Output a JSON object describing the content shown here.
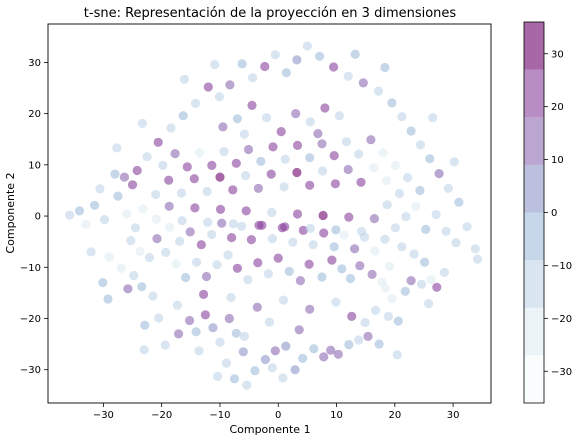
{
  "chart_data": {
    "type": "scatter",
    "title": "t-sne: Representación de la proyección en 3 dimensiones",
    "xlabel": "Componente 1",
    "ylabel": "Componente 2",
    "xlim": [
      -39.5,
      36.5
    ],
    "ylim": [
      -36.5,
      37.5
    ],
    "xticks": [
      -30,
      -20,
      -10,
      0,
      10,
      20,
      30
    ],
    "yticks": [
      -30,
      -20,
      -10,
      0,
      10,
      20,
      30
    ],
    "xtick_labels": [
      "−30",
      "−20",
      "−10",
      "0",
      "10",
      "20",
      "30"
    ],
    "ytick_labels": [
      "−30",
      "−20",
      "−10",
      "0",
      "10",
      "20",
      "30"
    ],
    "grid": false,
    "colormap": "BuPu",
    "alpha": 0.6,
    "colorbar": {
      "range": [
        -36,
        36
      ],
      "boundaries": [
        -36,
        -27,
        -18,
        -9,
        0,
        9,
        18,
        27,
        36
      ],
      "ticks": [
        -30,
        -20,
        -10,
        0,
        10,
        20,
        30
      ],
      "tick_labels": [
        "−30",
        "−20",
        "−10",
        "0",
        "10",
        "20",
        "30"
      ],
      "colors": [
        "#f7fcfd",
        "#e0ecf4",
        "#bfd3e6",
        "#9ebcda",
        "#8c96c6",
        "#8c6bb1",
        "#88419d",
        "#6e016b"
      ]
    },
    "points": [
      [
        -35.8,
        0.2,
        -12
      ],
      [
        -34.1,
        1.0,
        -8
      ],
      [
        -33.0,
        -1.6,
        -20
      ],
      [
        -31.5,
        2.1,
        -5
      ],
      [
        -29.8,
        -0.7,
        -15
      ],
      [
        -30.6,
        5.3,
        -10
      ],
      [
        -28.0,
        8.2,
        -3
      ],
      [
        -26.4,
        7.6,
        14
      ],
      [
        -25.0,
        6.1,
        20
      ],
      [
        -24.2,
        8.9,
        18
      ],
      [
        -27.5,
        3.9,
        -9
      ],
      [
        -26.0,
        0.4,
        -24
      ],
      [
        -24.5,
        -2.3,
        -18
      ],
      [
        -25.3,
        -4.8,
        -14
      ],
      [
        -23.7,
        -6.9,
        -20
      ],
      [
        -22.1,
        -8.1,
        -17
      ],
      [
        -24.8,
        -11.6,
        -10
      ],
      [
        -26.9,
        -10.2,
        -25
      ],
      [
        -29.0,
        -8.0,
        -22
      ],
      [
        -30.1,
        -13.0,
        -6
      ],
      [
        -25.8,
        -14.2,
        12
      ],
      [
        -23.4,
        -13.8,
        -9
      ],
      [
        -21.5,
        -15.6,
        -16
      ],
      [
        -20.5,
        -19.9,
        -11
      ],
      [
        -22.9,
        -21.3,
        -4
      ],
      [
        -19.4,
        -25.2,
        -10
      ],
      [
        -17.1,
        -23.0,
        15
      ],
      [
        -15.2,
        -20.4,
        12
      ],
      [
        -14.1,
        -22.6,
        -7
      ],
      [
        -12.5,
        -19.3,
        23
      ],
      [
        -11.2,
        -21.8,
        6
      ],
      [
        -10.0,
        -24.6,
        -13
      ],
      [
        -8.4,
        -20.0,
        10
      ],
      [
        -7.2,
        -22.9,
        -6
      ],
      [
        -6.0,
        -26.5,
        2
      ],
      [
        -8.9,
        -28.7,
        -12
      ],
      [
        -10.4,
        -31.3,
        -15
      ],
      [
        -7.5,
        -31.8,
        -9
      ],
      [
        -5.4,
        -33.0,
        -14
      ],
      [
        -4.0,
        -30.2,
        -8
      ],
      [
        -2.2,
        -28.0,
        7
      ],
      [
        -0.5,
        -26.3,
        12
      ],
      [
        1.3,
        -25.4,
        4
      ],
      [
        -1.0,
        -29.6,
        -10
      ],
      [
        0.8,
        -31.6,
        -12
      ],
      [
        2.9,
        -30.0,
        3
      ],
      [
        4.2,
        -27.8,
        -6
      ],
      [
        6.1,
        -25.9,
        -9
      ],
      [
        7.8,
        -27.5,
        11
      ],
      [
        9.0,
        -26.2,
        14
      ],
      [
        10.3,
        -27.0,
        16
      ],
      [
        12.1,
        -25.1,
        -5
      ],
      [
        13.8,
        -24.2,
        -13
      ],
      [
        15.4,
        -23.5,
        10
      ],
      [
        17.3,
        -25.0,
        -7
      ],
      [
        14.9,
        -20.8,
        -18
      ],
      [
        16.7,
        -18.4,
        -12
      ],
      [
        18.9,
        -19.6,
        -15
      ],
      [
        20.6,
        -20.5,
        -9
      ],
      [
        19.5,
        -16.1,
        -20
      ],
      [
        21.8,
        -14.7,
        -8
      ],
      [
        22.8,
        -12.6,
        14
      ],
      [
        24.6,
        -13.3,
        -12
      ],
      [
        26.2,
        -12.4,
        -20
      ],
      [
        28.5,
        -11.0,
        -15
      ],
      [
        27.2,
        -13.9,
        18
      ],
      [
        25.1,
        -9.0,
        -6
      ],
      [
        23.3,
        -7.4,
        -17
      ],
      [
        21.2,
        -6.0,
        -11
      ],
      [
        19.1,
        -9.8,
        -22
      ],
      [
        17.8,
        -12.9,
        -25
      ],
      [
        18.4,
        -14.1,
        -19
      ],
      [
        16.1,
        -11.4,
        12
      ],
      [
        14.0,
        -9.7,
        17
      ],
      [
        12.4,
        -12.2,
        -7
      ],
      [
        10.9,
        -10.3,
        -4
      ],
      [
        9.2,
        -8.6,
        24
      ],
      [
        7.5,
        -11.9,
        -6
      ],
      [
        5.3,
        -9.4,
        21
      ],
      [
        3.8,
        -12.6,
        15
      ],
      [
        1.9,
        -10.8,
        -8
      ],
      [
        0.0,
        -8.2,
        25
      ],
      [
        -1.7,
        -11.3,
        -13
      ],
      [
        -3.5,
        -9.1,
        20
      ],
      [
        -5.2,
        -12.4,
        -11
      ],
      [
        -7.0,
        -10.2,
        19
      ],
      [
        -8.6,
        -7.6,
        -18
      ],
      [
        -10.5,
        -9.5,
        -12
      ],
      [
        -12.3,
        -11.8,
        13
      ],
      [
        -14.0,
        -9.0,
        -15
      ],
      [
        -15.9,
        -12.0,
        -6
      ],
      [
        -17.5,
        -9.3,
        -21
      ],
      [
        -19.3,
        -7.1,
        -13
      ],
      [
        -20.8,
        -4.4,
        17
      ],
      [
        -18.6,
        -2.2,
        -22
      ],
      [
        -16.9,
        -4.9,
        -12
      ],
      [
        -15.1,
        -3.1,
        14
      ],
      [
        -13.2,
        -5.6,
        22
      ],
      [
        -11.4,
        -3.6,
        -16
      ],
      [
        -9.7,
        -1.4,
        15
      ],
      [
        -8.0,
        -4.2,
        26
      ],
      [
        -6.3,
        -2.0,
        -14
      ],
      [
        -4.6,
        -4.6,
        24
      ],
      [
        -2.8,
        -1.8,
        19
      ],
      [
        -1.0,
        -4.4,
        -10
      ],
      [
        0.7,
        -2.3,
        21
      ],
      [
        2.5,
        -5.1,
        -12
      ],
      [
        4.3,
        -2.8,
        18
      ],
      [
        6.0,
        -5.6,
        -15
      ],
      [
        7.8,
        -3.3,
        23
      ],
      [
        9.6,
        -6.0,
        -8
      ],
      [
        11.3,
        -3.7,
        -20
      ],
      [
        13.1,
        -6.4,
        11
      ],
      [
        14.8,
        -4.1,
        -16
      ],
      [
        16.6,
        -6.8,
        -22
      ],
      [
        18.3,
        -4.5,
        -10
      ],
      [
        20.1,
        -2.3,
        -18
      ],
      [
        21.9,
        -0.1,
        -13
      ],
      [
        23.6,
        1.9,
        -24
      ],
      [
        25.3,
        -2.6,
        -6
      ],
      [
        27.1,
        0.3,
        -16
      ],
      [
        28.8,
        -3.0,
        -11
      ],
      [
        30.5,
        -5.2,
        -14
      ],
      [
        32.4,
        -2.1,
        -10
      ],
      [
        33.8,
        -6.4,
        -13
      ],
      [
        31.0,
        2.7,
        -8
      ],
      [
        29.2,
        5.4,
        -15
      ],
      [
        27.6,
        8.3,
        10
      ],
      [
        26.0,
        11.2,
        -9
      ],
      [
        24.4,
        13.9,
        -13
      ],
      [
        22.8,
        16.6,
        -7
      ],
      [
        21.2,
        19.4,
        -12
      ],
      [
        19.5,
        22.1,
        -6
      ],
      [
        17.2,
        24.4,
        -14
      ],
      [
        14.6,
        26.0,
        12
      ],
      [
        12.0,
        27.3,
        -10
      ],
      [
        9.5,
        29.1,
        18
      ],
      [
        7.1,
        31.2,
        -9
      ],
      [
        5.0,
        33.2,
        -12
      ],
      [
        3.2,
        30.5,
        8
      ],
      [
        1.4,
        28.0,
        -5
      ],
      [
        -0.5,
        31.5,
        -11
      ],
      [
        -2.3,
        29.2,
        20
      ],
      [
        -4.4,
        27.0,
        -13
      ],
      [
        -6.2,
        29.7,
        -8
      ],
      [
        -8.3,
        25.6,
        15
      ],
      [
        -10.1,
        23.3,
        -10
      ],
      [
        -12.0,
        25.2,
        24
      ],
      [
        -14.2,
        22.0,
        -12
      ],
      [
        -16.3,
        19.6,
        -7
      ],
      [
        -18.4,
        17.2,
        -15
      ],
      [
        -20.6,
        14.4,
        18
      ],
      [
        -22.5,
        11.6,
        -13
      ],
      [
        -19.8,
        9.9,
        -18
      ],
      [
        -17.7,
        12.2,
        16
      ],
      [
        -15.6,
        9.6,
        20
      ],
      [
        -13.5,
        12.4,
        -20
      ],
      [
        -11.4,
        9.9,
        26
      ],
      [
        -9.3,
        12.6,
        -12
      ],
      [
        -7.2,
        10.3,
        23
      ],
      [
        -5.1,
        13.0,
        15
      ],
      [
        -3.0,
        10.7,
        -9
      ],
      [
        -0.9,
        13.5,
        22
      ],
      [
        1.2,
        11.1,
        -14
      ],
      [
        3.3,
        13.8,
        24
      ],
      [
        5.4,
        11.4,
        -7
      ],
      [
        7.5,
        14.1,
        17
      ],
      [
        9.6,
        11.8,
        21
      ],
      [
        11.7,
        14.5,
        -11
      ],
      [
        13.8,
        12.1,
        -16
      ],
      [
        15.9,
        14.9,
        13
      ],
      [
        18.0,
        12.4,
        -19
      ],
      [
        20.1,
        9.9,
        -25
      ],
      [
        22.2,
        7.5,
        -12
      ],
      [
        24.3,
        5.0,
        -8
      ],
      [
        20.8,
        4.4,
        -16
      ],
      [
        18.6,
        6.9,
        -21
      ],
      [
        16.4,
        9.4,
        -22
      ],
      [
        14.2,
        6.6,
        19
      ],
      [
        12.0,
        9.1,
        16
      ],
      [
        9.8,
        6.3,
        25
      ],
      [
        7.6,
        8.8,
        -10
      ],
      [
        5.4,
        6.0,
        22
      ],
      [
        3.2,
        8.5,
        27
      ],
      [
        1.0,
        5.7,
        -13
      ],
      [
        -1.2,
        8.2,
        26
      ],
      [
        -3.4,
        5.4,
        17
      ],
      [
        -5.6,
        7.9,
        -12
      ],
      [
        -7.8,
        5.1,
        24
      ],
      [
        -10.0,
        7.6,
        27
      ],
      [
        -12.2,
        4.8,
        -11
      ],
      [
        -14.4,
        7.3,
        19
      ],
      [
        -16.6,
        4.5,
        -17
      ],
      [
        -18.8,
        7.0,
        21
      ],
      [
        -21.0,
        4.2,
        -12
      ],
      [
        -23.2,
        1.4,
        -20
      ],
      [
        -20.9,
        -0.6,
        -22
      ],
      [
        -18.7,
        1.9,
        14
      ],
      [
        -16.5,
        -0.9,
        -18
      ],
      [
        -14.3,
        1.6,
        23
      ],
      [
        -12.1,
        -1.2,
        -13
      ],
      [
        -9.9,
        1.3,
        25
      ],
      [
        -7.7,
        -1.5,
        -10
      ],
      [
        -5.5,
        1.0,
        20
      ],
      [
        -3.3,
        -1.8,
        26
      ],
      [
        -1.1,
        0.7,
        -14
      ],
      [
        1.1,
        -2.1,
        24
      ],
      [
        3.3,
        0.4,
        18
      ],
      [
        5.5,
        -2.4,
        -12
      ],
      [
        7.7,
        0.1,
        27
      ],
      [
        9.9,
        -2.7,
        -9
      ],
      [
        12.1,
        -0.2,
        22
      ],
      [
        14.3,
        -3.0,
        -17
      ],
      [
        16.5,
        -0.5,
        15
      ],
      [
        18.7,
        2.2,
        -15
      ],
      [
        3.0,
        20.0,
        13
      ],
      [
        5.5,
        18.4,
        -10
      ],
      [
        8.0,
        21.1,
        20
      ],
      [
        10.5,
        19.6,
        -12
      ],
      [
        -2.0,
        19.2,
        -13
      ],
      [
        -4.5,
        21.6,
        21
      ],
      [
        -7.0,
        19.0,
        -9
      ],
      [
        -9.5,
        17.4,
        17
      ],
      [
        0.5,
        16.5,
        23
      ],
      [
        -5.8,
        16.0,
        -15
      ],
      [
        6.8,
        16.1,
        15
      ],
      [
        -17.3,
        -17.4,
        -14
      ],
      [
        -12.8,
        -15.3,
        18
      ],
      [
        -8.1,
        -15.9,
        -10
      ],
      [
        -3.6,
        -17.8,
        14
      ],
      [
        0.9,
        -16.4,
        -15
      ],
      [
        5.4,
        -18.2,
        13
      ],
      [
        9.9,
        -16.8,
        -12
      ],
      [
        12.6,
        -19.6,
        22
      ],
      [
        -1.5,
        -20.7,
        -16
      ],
      [
        3.6,
        -22.2,
        17
      ],
      [
        -5.8,
        -23.5,
        -11
      ],
      [
        -13.6,
        -26.3,
        -14
      ],
      [
        13.2,
        31.6,
        -9
      ],
      [
        -10.9,
        29.6,
        -12
      ],
      [
        18.3,
        29.0,
        -6
      ],
      [
        -16.1,
        26.7,
        -13
      ],
      [
        -23.3,
        18.1,
        -11
      ],
      [
        26.5,
        19.2,
        -10
      ],
      [
        -27.7,
        13.3,
        -14
      ],
      [
        30.2,
        10.6,
        -12
      ],
      [
        -32.1,
        -7.0,
        -13
      ],
      [
        34.2,
        -8.4,
        -10
      ],
      [
        -29.2,
        -16.2,
        -9
      ],
      [
        25.8,
        -17.1,
        -15
      ],
      [
        -23.0,
        -26.1,
        -12
      ],
      [
        20.4,
        -27.1,
        -13
      ]
    ]
  }
}
